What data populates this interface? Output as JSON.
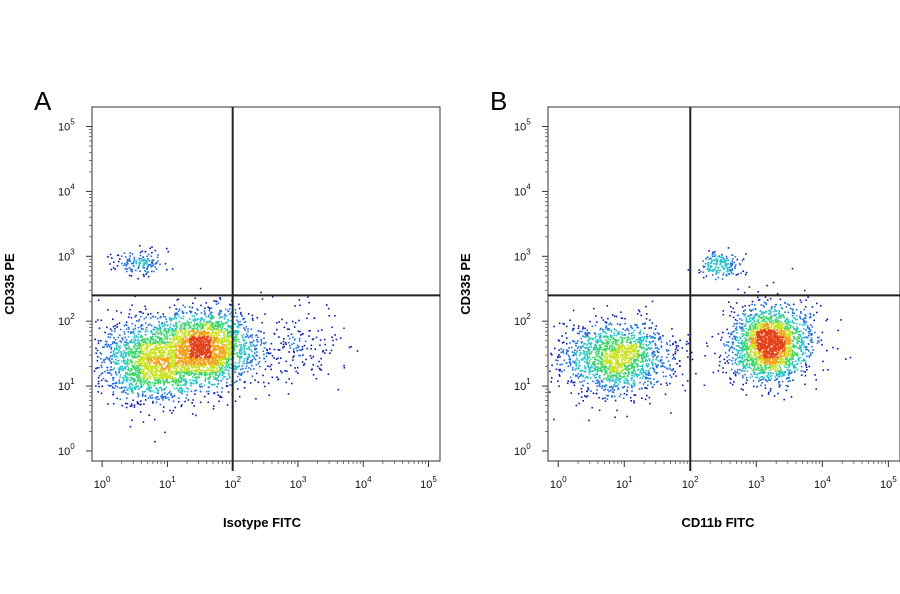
{
  "chart_data": [
    {
      "type": "scatter",
      "panel_label": "A",
      "xlabel": "Isotype FITC",
      "ylabel": "CD335 PE",
      "xscale": "log",
      "yscale": "log",
      "xlim": [
        0.7,
        150000
      ],
      "ylim": [
        0.7,
        200000
      ],
      "xticks": [
        1,
        10,
        100,
        1000,
        10000,
        100000
      ],
      "yticks": [
        1,
        10,
        100,
        1000,
        10000,
        100000
      ],
      "quadrant_gate": {
        "x": 100,
        "y": 250
      },
      "colormap": [
        "#0a1aa8",
        "#1e6fd9",
        "#22c3c7",
        "#3bd46a",
        "#c9e21f",
        "#f2a21a",
        "#e2401a"
      ],
      "populations": [
        {
          "center": [
            40,
            40
          ],
          "spread": [
            0.35,
            0.28
          ],
          "relative_count": 3500
        },
        {
          "center": [
            6,
            25
          ],
          "spread": [
            0.42,
            0.32
          ],
          "relative_count": 3300
        },
        {
          "center": [
            4,
            800
          ],
          "spread": [
            0.22,
            0.1
          ],
          "relative_count": 280
        },
        {
          "center": [
            600,
            40
          ],
          "spread": [
            0.45,
            0.3
          ],
          "relative_count": 420
        }
      ]
    },
    {
      "type": "scatter",
      "panel_label": "B",
      "xlabel": "CD11b FITC",
      "ylabel": "CD335 PE",
      "xscale": "log",
      "yscale": "log",
      "xlim": [
        0.7,
        150000
      ],
      "ylim": [
        0.7,
        200000
      ],
      "xticks": [
        1,
        10,
        100,
        1000,
        10000,
        100000
      ],
      "yticks": [
        1,
        10,
        100,
        1000,
        10000,
        100000
      ],
      "quadrant_gate": {
        "x": 100,
        "y": 250
      },
      "colormap": [
        "#0a1aa8",
        "#1e6fd9",
        "#22c3c7",
        "#3bd46a",
        "#c9e21f",
        "#f2a21a",
        "#e2401a"
      ],
      "populations": [
        {
          "center": [
            1500,
            45
          ],
          "spread": [
            0.28,
            0.28
          ],
          "relative_count": 3600
        },
        {
          "center": [
            7,
            28
          ],
          "spread": [
            0.42,
            0.28
          ],
          "relative_count": 2900
        },
        {
          "center": [
            280,
            750
          ],
          "spread": [
            0.16,
            0.1
          ],
          "relative_count": 330
        },
        {
          "center": [
            5000,
            60
          ],
          "spread": [
            0.3,
            0.3
          ],
          "relative_count": 150
        }
      ]
    }
  ]
}
